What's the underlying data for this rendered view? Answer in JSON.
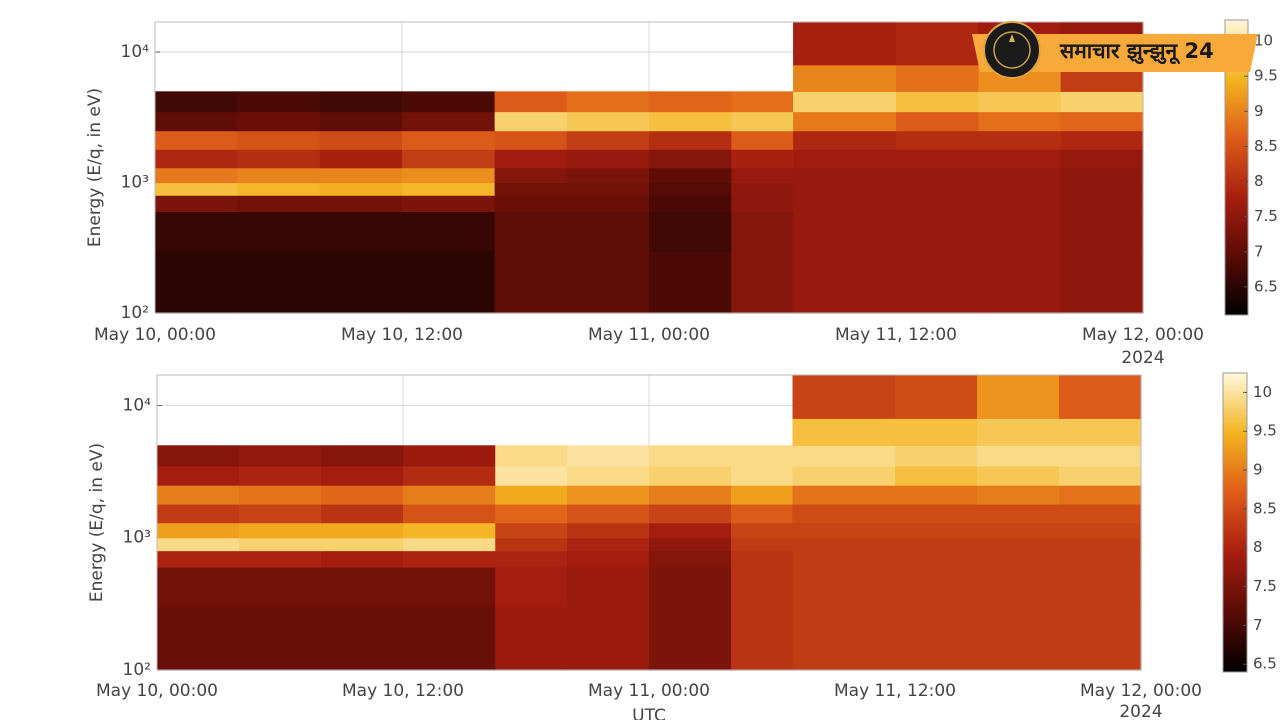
{
  "chart_data": [
    {
      "type": "heatmap",
      "ylabel": "Energy (E/q, in eV)",
      "log_y": true,
      "grid": true,
      "xlim": [
        0,
        48
      ],
      "xticks": [
        {
          "value": 0,
          "label": "May 10, 00:00"
        },
        {
          "value": 12,
          "label": "May 10, 12:00"
        },
        {
          "value": 24,
          "label": "May 11, 00:00"
        },
        {
          "value": 36,
          "label": "May 11, 12:00"
        },
        {
          "value": 48,
          "label": "May 12, 00:00"
        }
      ],
      "x_offset_label": "2024",
      "ylim": [
        100,
        17000
      ],
      "yticks": [
        {
          "value": 100,
          "label": "10²"
        },
        {
          "value": 1000,
          "label": "10³"
        },
        {
          "value": 10000,
          "label": "10⁴"
        }
      ],
      "x_edges": [
        0,
        4,
        8,
        12,
        16.5,
        20,
        24,
        28,
        31,
        36,
        40,
        44,
        48
      ],
      "y_edges": [
        100,
        300,
        600,
        800,
        1000,
        1300,
        1800,
        2500,
        3500,
        5000,
        8000,
        17000
      ],
      "z": [
        [
          6.5,
          6.5,
          6.5,
          6.5,
          7.0,
          7.0,
          6.8,
          7.4,
          7.6,
          7.6,
          7.6,
          7.5
        ],
        [
          6.6,
          6.6,
          6.6,
          6.6,
          7.0,
          7.0,
          6.7,
          7.4,
          7.6,
          7.6,
          7.6,
          7.5
        ],
        [
          7.3,
          7.2,
          7.2,
          7.3,
          7.1,
          7.1,
          6.8,
          7.5,
          7.6,
          7.6,
          7.6,
          7.5
        ],
        [
          9.6,
          9.5,
          9.4,
          9.5,
          7.2,
          7.2,
          6.9,
          7.5,
          7.6,
          7.6,
          7.6,
          7.5
        ],
        [
          8.9,
          9.0,
          9.0,
          9.1,
          7.4,
          7.3,
          7.0,
          7.6,
          7.6,
          7.6,
          7.6,
          7.5
        ],
        [
          7.9,
          8.0,
          7.8,
          8.2,
          7.7,
          7.6,
          7.4,
          7.8,
          7.7,
          7.7,
          7.7,
          7.6
        ],
        [
          8.6,
          8.5,
          8.4,
          8.6,
          8.5,
          8.2,
          8.0,
          8.6,
          7.9,
          8.0,
          8.0,
          7.9
        ],
        [
          7.0,
          7.1,
          7.0,
          7.2,
          9.8,
          9.7,
          9.6,
          9.7,
          8.9,
          8.6,
          8.8,
          8.7
        ],
        [
          6.7,
          6.8,
          6.7,
          6.8,
          8.6,
          8.8,
          8.7,
          8.8,
          9.8,
          9.6,
          9.7,
          9.8
        ],
        [
          null,
          null,
          null,
          null,
          null,
          null,
          null,
          null,
          9.0,
          8.8,
          9.1,
          8.2
        ],
        [
          null,
          null,
          null,
          null,
          null,
          null,
          null,
          null,
          7.8,
          7.9,
          7.7,
          7.6
        ]
      ],
      "clim": [
        6.1,
        10.3
      ],
      "cticks": [
        6.5,
        7,
        7.5,
        8,
        8.5,
        9,
        9.5,
        10
      ],
      "colormap": [
        "#000000",
        "#5a0c06",
        "#a81e10",
        "#de5c18",
        "#f4b420",
        "#fff8dc"
      ]
    },
    {
      "type": "heatmap",
      "ylabel": "Energy (E/q, in eV)",
      "xlabel": "UTC",
      "log_y": true,
      "grid": true,
      "xlim": [
        0,
        48
      ],
      "xticks": [
        {
          "value": 0,
          "label": "May 10, 00:00"
        },
        {
          "value": 12,
          "label": "May 10, 12:00"
        },
        {
          "value": 24,
          "label": "May 11, 00:00"
        },
        {
          "value": 36,
          "label": "May 11, 12:00"
        },
        {
          "value": 48,
          "label": "May 12, 00:00"
        }
      ],
      "x_offset_label": "2024",
      "ylim": [
        100,
        17000
      ],
      "yticks": [
        {
          "value": 100,
          "label": "10²"
        },
        {
          "value": 1000,
          "label": "10³"
        },
        {
          "value": 10000,
          "label": "10⁴"
        }
      ],
      "x_edges": [
        0,
        4,
        8,
        12,
        16.5,
        20,
        24,
        28,
        31,
        36,
        40,
        44,
        48
      ],
      "y_edges": [
        100,
        300,
        600,
        800,
        1000,
        1300,
        1800,
        2500,
        3500,
        5000,
        8000,
        17000
      ],
      "z": [
        [
          7.3,
          7.3,
          7.3,
          7.3,
          7.8,
          7.8,
          7.5,
          8.2,
          8.3,
          8.3,
          8.3,
          8.3
        ],
        [
          7.4,
          7.4,
          7.4,
          7.4,
          7.9,
          7.8,
          7.5,
          8.2,
          8.3,
          8.3,
          8.3,
          8.3
        ],
        [
          8.0,
          8.0,
          7.9,
          8.0,
          8.0,
          7.9,
          7.6,
          8.2,
          8.3,
          8.3,
          8.3,
          8.3
        ],
        [
          9.9,
          9.8,
          9.8,
          9.9,
          8.2,
          8.0,
          7.7,
          8.3,
          8.3,
          8.3,
          8.3,
          8.3
        ],
        [
          9.3,
          9.4,
          9.4,
          9.5,
          8.4,
          8.2,
          7.9,
          8.4,
          8.4,
          8.4,
          8.4,
          8.4
        ],
        [
          8.3,
          8.4,
          8.2,
          8.6,
          8.8,
          8.6,
          8.4,
          8.7,
          8.5,
          8.5,
          8.5,
          8.5
        ],
        [
          9.0,
          8.9,
          8.8,
          9.0,
          9.4,
          9.2,
          9.0,
          9.3,
          8.9,
          8.9,
          9.0,
          8.9
        ],
        [
          7.9,
          8.0,
          7.9,
          8.1,
          10.0,
          9.9,
          9.8,
          9.9,
          9.8,
          9.6,
          9.7,
          9.8
        ],
        [
          7.6,
          7.7,
          7.6,
          7.8,
          9.9,
          10.0,
          9.9,
          9.9,
          9.9,
          9.8,
          9.9,
          9.9
        ],
        [
          null,
          null,
          null,
          null,
          null,
          null,
          null,
          null,
          9.6,
          9.6,
          9.7,
          9.7
        ],
        [
          null,
          null,
          null,
          null,
          null,
          null,
          null,
          null,
          8.4,
          8.5,
          9.2,
          8.7
        ]
      ],
      "clim": [
        6.4,
        10.25
      ],
      "cticks": [
        6.5,
        7,
        7.5,
        8,
        8.5,
        9,
        9.5,
        10
      ],
      "colormap": [
        "#000000",
        "#5a0c06",
        "#a81e10",
        "#de5c18",
        "#f4b420",
        "#fff8dc"
      ]
    }
  ],
  "watermark": "समाचार झुन्झुनू 24"
}
